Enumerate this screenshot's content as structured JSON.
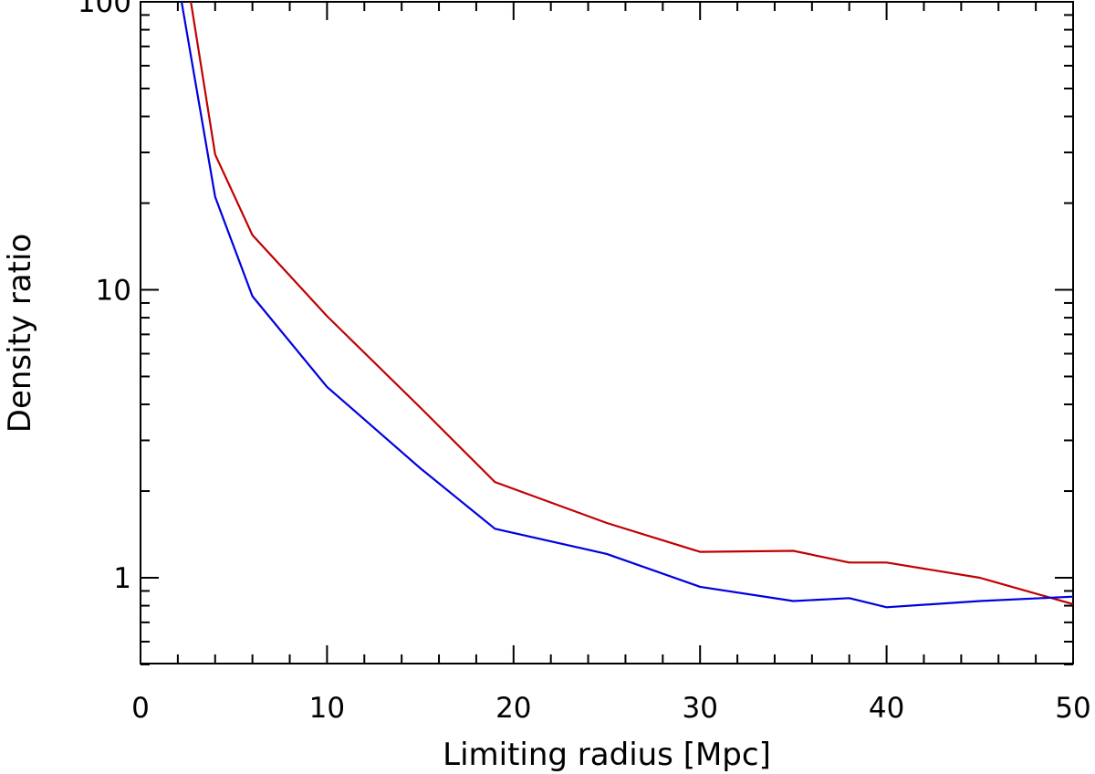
{
  "chart_data": {
    "type": "line",
    "xlabel": "Limiting radius [Mpc]",
    "ylabel": "Density ratio",
    "xlim": [
      0,
      50
    ],
    "ylim": [
      0.5,
      100
    ],
    "yscale": "log",
    "grid": false,
    "x_ticks": [
      0,
      10,
      20,
      30,
      40,
      50
    ],
    "x_tick_labels": [
      "0",
      "10",
      "20",
      "30",
      "40",
      "50"
    ],
    "y_ticks": [
      1,
      10,
      100
    ],
    "y_tick_labels": [
      "1",
      "10",
      "100"
    ],
    "series": [
      {
        "color": "#c00000",
        "x": [
          2.7,
          4,
          6,
          10,
          15,
          19,
          25,
          30,
          35,
          38,
          40,
          45,
          50
        ],
        "y": [
          100,
          29.5,
          15.5,
          8.1,
          3.9,
          2.15,
          1.55,
          1.23,
          1.24,
          1.13,
          1.13,
          1.0,
          0.81
        ]
      },
      {
        "color": "#0000e0",
        "x": [
          2.2,
          4,
          6,
          10,
          15,
          19,
          25,
          30,
          35,
          38,
          40,
          45,
          50
        ],
        "y": [
          100,
          21,
          9.5,
          4.6,
          2.4,
          1.48,
          1.21,
          0.93,
          0.83,
          0.85,
          0.79,
          0.83,
          0.86
        ]
      }
    ]
  }
}
